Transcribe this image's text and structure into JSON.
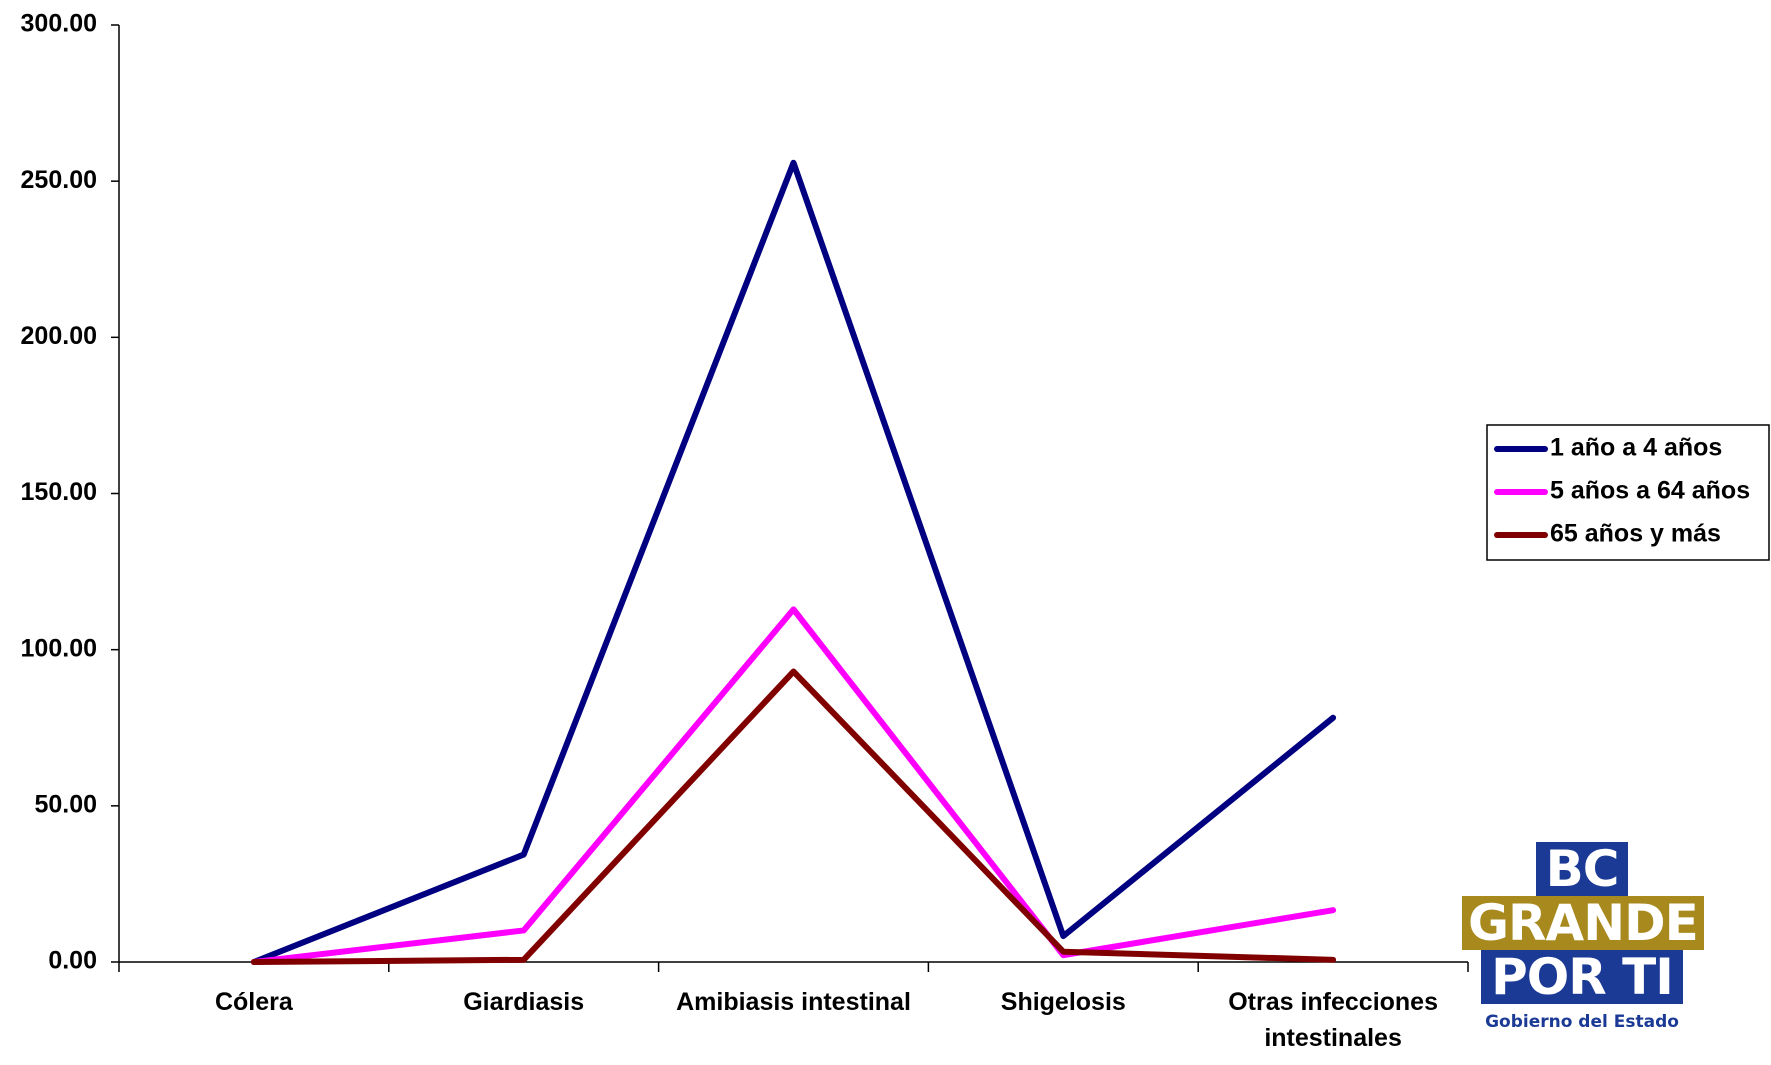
{
  "chart_data": {
    "type": "line",
    "categories": [
      "Cólera",
      "Giardiasis",
      "Amibiasis intestinal",
      "Shigelosis",
      "Otras infecciones intestinales"
    ],
    "series": [
      {
        "name": "1 año a 4 años",
        "color": "#000080",
        "values": [
          0,
          34.4,
          255.9,
          8.3,
          78.2
        ]
      },
      {
        "name": "5 años a 64 años",
        "color": "#ff00ff",
        "values": [
          0,
          10.1,
          112.9,
          2.2,
          16.6
        ]
      },
      {
        "name": "65 años y más",
        "color": "#800000",
        "values": [
          0,
          0.7,
          93.0,
          3.3,
          0.7
        ]
      }
    ],
    "ylim": [
      0,
      300
    ],
    "yticks": [
      {
        "value": 0,
        "label": "0.00"
      },
      {
        "value": 50,
        "label": "50.00"
      },
      {
        "value": 100,
        "label": "100.00"
      },
      {
        "value": 150,
        "label": "150.00"
      },
      {
        "value": 200,
        "label": "200.00"
      },
      {
        "value": 250,
        "label": "250.00"
      },
      {
        "value": 300,
        "label": "300.00"
      }
    ],
    "grid": false,
    "legend": "right"
  },
  "logo": {
    "lines": [
      "BC",
      "GRANDE",
      "POR TI"
    ],
    "caption": "Gobierno del Estado"
  }
}
